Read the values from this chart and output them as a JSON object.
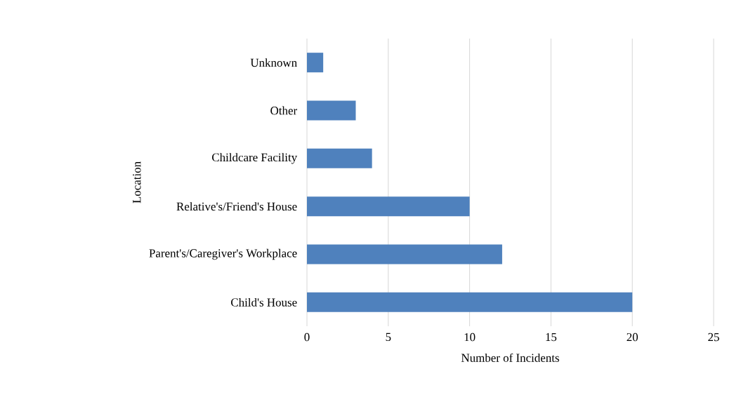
{
  "chart_data": {
    "type": "bar",
    "orientation": "horizontal",
    "xlabel": "Number of Incidents",
    "ylabel": "Location",
    "categories": [
      "Unknown",
      "Other",
      "Childcare Facility",
      "Relative's/Friend's House",
      "Parent's/Caregiver's Workplace",
      "Child's House"
    ],
    "values": [
      1,
      3,
      4,
      10,
      12,
      20
    ],
    "color": "#4f81bd",
    "xlim": [
      0,
      25
    ],
    "xticks": [
      0,
      5,
      10,
      15,
      20,
      25
    ],
    "grid": "x"
  }
}
